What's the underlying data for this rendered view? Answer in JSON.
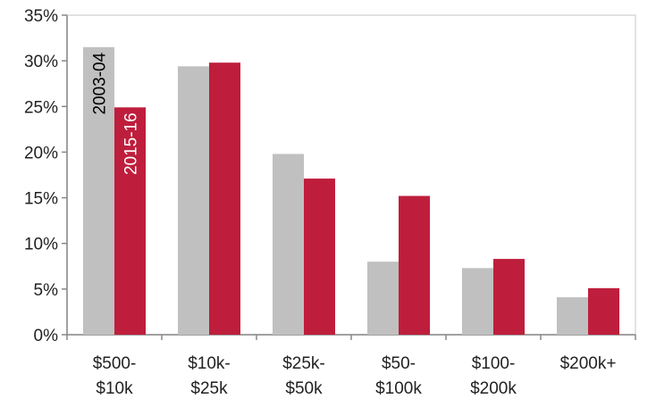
{
  "chart_data": {
    "type": "bar",
    "categories": [
      [
        "$500-",
        "$10k"
      ],
      [
        "$10k-",
        "$25k"
      ],
      [
        "$25k-",
        "$50k"
      ],
      [
        "$50-",
        "$100k"
      ],
      [
        "$100-",
        "$200k"
      ],
      [
        "$200k+"
      ]
    ],
    "series": [
      {
        "name": "2003-04",
        "color": "#c0c0c0",
        "label_color": "#000000",
        "values": [
          31.5,
          29.4,
          19.8,
          8.0,
          7.3,
          4.1
        ]
      },
      {
        "name": "2015-16",
        "color": "#be1e3c",
        "label_color": "#ffffff",
        "values": [
          24.9,
          29.8,
          17.1,
          15.2,
          8.3,
          5.1
        ]
      }
    ],
    "ylim": [
      0,
      35
    ],
    "yticks": [
      "0%",
      "5%",
      "10%",
      "15%",
      "20%",
      "25%",
      "30%",
      "35%"
    ],
    "ytick_values": [
      0,
      5,
      10,
      15,
      20,
      25,
      30,
      35
    ],
    "grid": false,
    "legend": "in-bar labels on first category",
    "title": "",
    "xlabel": "",
    "ylabel": ""
  }
}
